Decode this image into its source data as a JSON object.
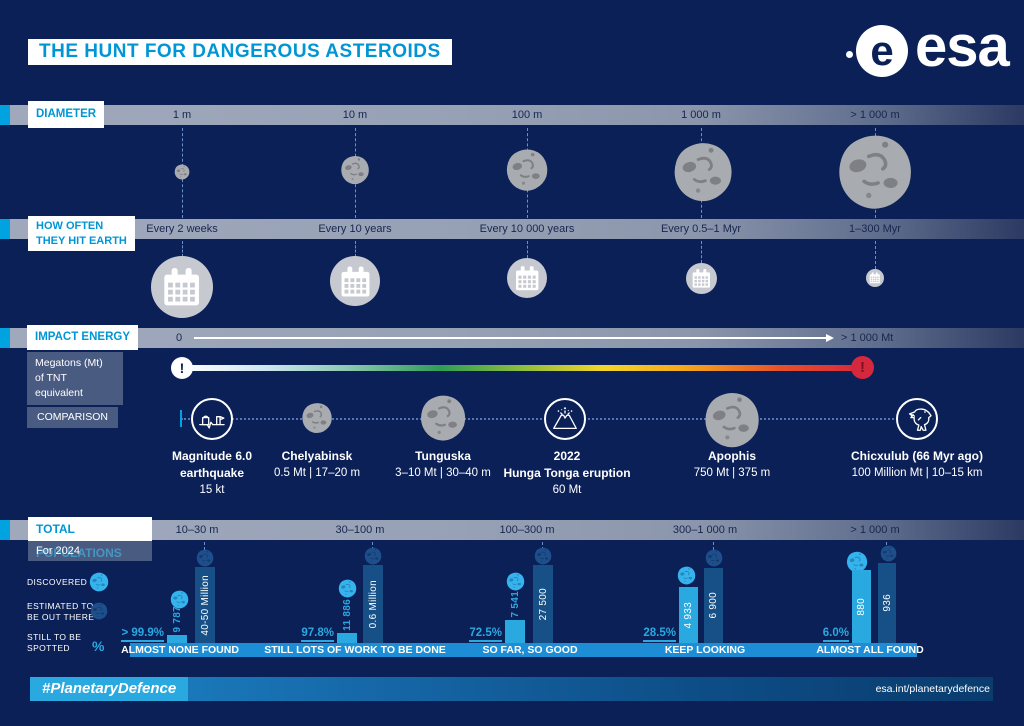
{
  "colors": {
    "background": "#0b2057",
    "accent_blue": "#00a3e0",
    "title_blue": "#0096d6",
    "bar_light": "#2aa9e0",
    "bar_dark": "#175087",
    "banner_blue": "#1d8ed6",
    "alert_red": "#d6283c",
    "asteroid_gray": "#a8abb0"
  },
  "header": {
    "title": "THE HUNT FOR DANGEROUS ASTEROIDS",
    "logo_mark_letter": "e",
    "logo_text": "esa"
  },
  "diameter": {
    "label": "DIAMETER",
    "columns": [
      "1 m",
      "10 m",
      "100 m",
      "1 000 m",
      "> 1 000 m"
    ]
  },
  "frequency": {
    "label_line1": "HOW OFTEN",
    "label_line2": "THEY HIT EARTH",
    "columns": [
      "Every 2 weeks",
      "Every 10 years",
      "Every 10 000 years",
      "Every 0.5–1 Myr",
      "1–300 Myr"
    ]
  },
  "impact": {
    "label": "IMPACT ENERGY",
    "unit_line1": "Megatons (Mt)",
    "unit_line2": "of TNT equivalent",
    "scale_start": "0",
    "scale_end": "> 1 000 Mt"
  },
  "comparison": {
    "label": "COMPARISON",
    "items": [
      {
        "icon": "earthquake",
        "line1": "Magnitude 6.0",
        "line2": "earthquake",
        "line3": "15 kt"
      },
      {
        "icon": "asteroid",
        "line1": "Chelyabinsk",
        "line2": "0.5 Mt | 17–20 m",
        "line3": ""
      },
      {
        "icon": "asteroid",
        "line1": "Tunguska",
        "line2": "3–10 Mt | 30–40 m",
        "line3": ""
      },
      {
        "icon": "volcano",
        "line1": "2022",
        "line2": "Hunga Tonga eruption",
        "line3": "60 Mt"
      },
      {
        "icon": "asteroid",
        "line1": "Apophis",
        "line2": "750 Mt | 375 m",
        "line3": ""
      },
      {
        "icon": "dinosaur",
        "line1": "Chicxulub (66 Myr ago)",
        "line2": "100 Million Mt | 10–15 km",
        "line3": ""
      }
    ]
  },
  "populations": {
    "label": "TOTAL POPULATIONS",
    "sublabel": "For 2024",
    "legend": {
      "discovered": "DISCOVERED",
      "estimated_line1": "ESTIMATED TO",
      "estimated_line2": "BE OUT THERE",
      "spotted_line1": "STILL TO BE",
      "spotted_line2": "SPOTTED",
      "percent_symbol": "%"
    },
    "groups": [
      {
        "range": "10–30 m",
        "discovered": "9 787",
        "estimated": "40-50 Million",
        "still_to_spot": "> 99.9%",
        "status": "ALMOST NONE FOUND",
        "bar_heights": {
          "discovered": 8,
          "estimated": 76
        }
      },
      {
        "range": "30–100 m",
        "discovered": "11 886",
        "estimated": "0.6 Million",
        "still_to_spot": "97.8%",
        "status": "STILL LOTS OF WORK TO BE DONE",
        "bar_heights": {
          "discovered": 10,
          "estimated": 78
        }
      },
      {
        "range": "100–300 m",
        "discovered": "7 541",
        "estimated": "27 500",
        "still_to_spot": "72.5%",
        "status": "SO FAR, SO GOOD",
        "bar_heights": {
          "discovered": 23,
          "estimated": 78
        }
      },
      {
        "range": "300–1 000 m",
        "discovered": "4 933",
        "estimated": "6 900",
        "still_to_spot": "28.5%",
        "status": "KEEP LOOKING",
        "bar_heights": {
          "discovered": 56,
          "estimated": 75
        }
      },
      {
        "range": "> 1 000 m",
        "discovered": "880",
        "estimated": "936",
        "still_to_spot": "6.0%",
        "status": "ALMOST ALL FOUND",
        "bar_heights": {
          "discovered": 73,
          "estimated": 80
        }
      }
    ]
  },
  "footer": {
    "hashtag": "#PlanetaryDefence",
    "url": "esa.int/planetarydefence"
  }
}
